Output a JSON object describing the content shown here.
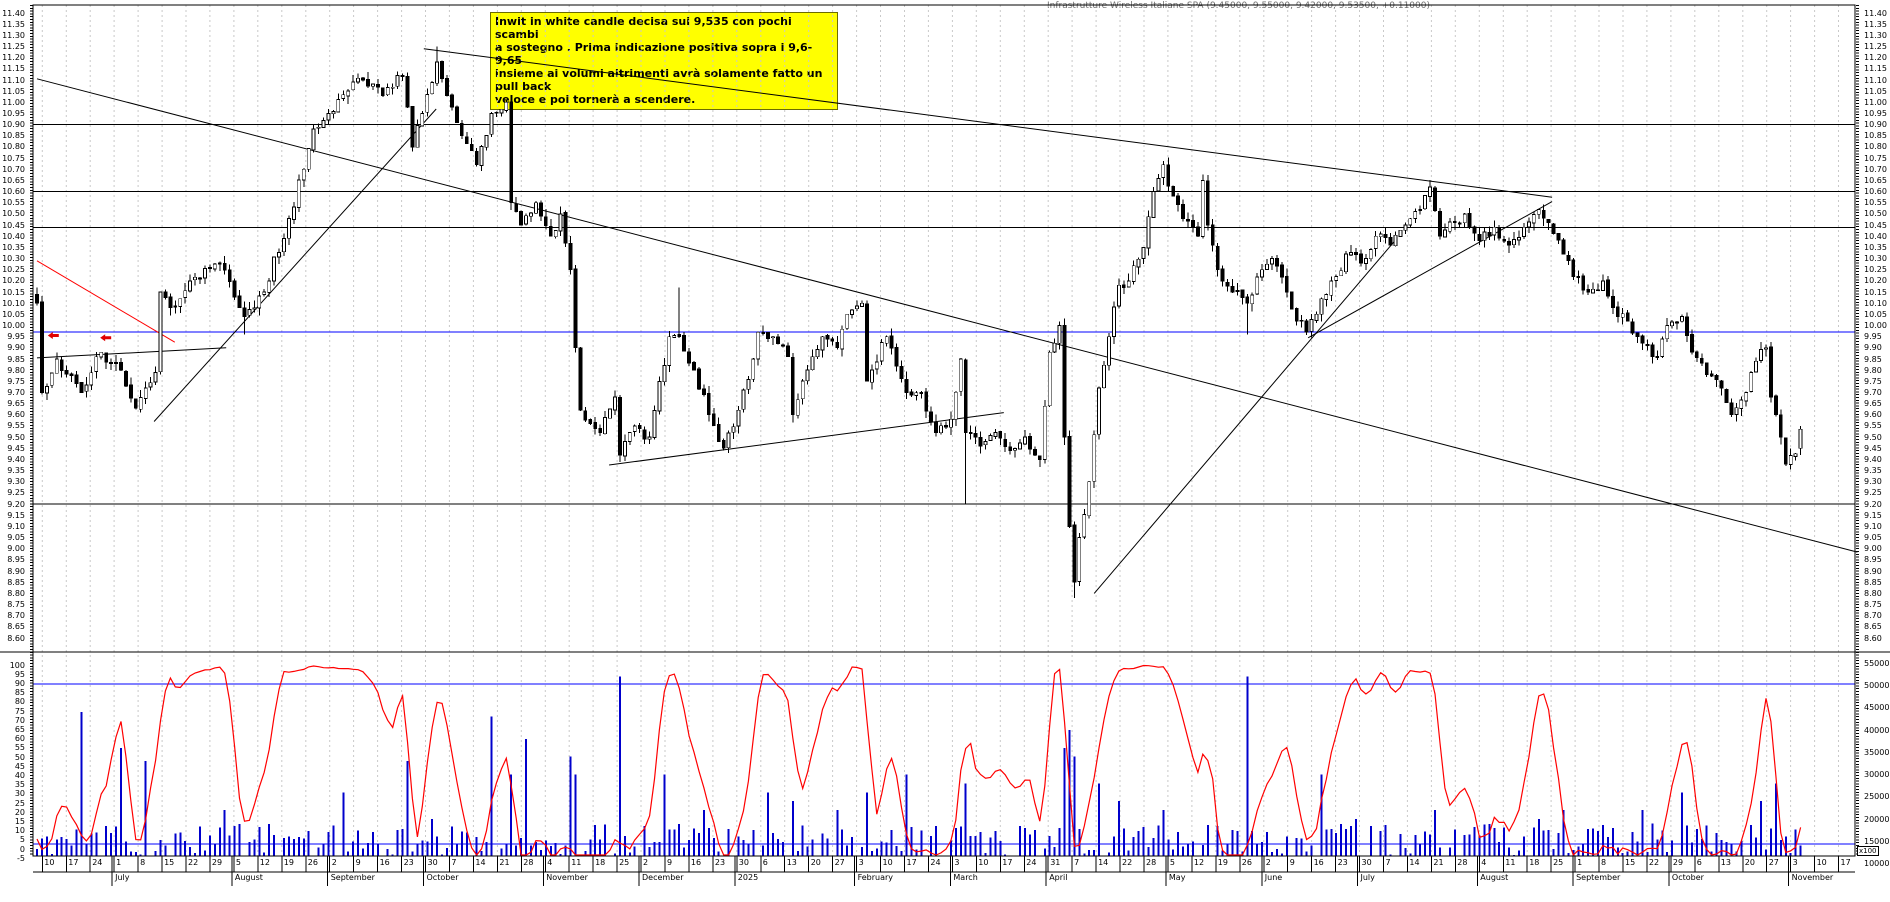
{
  "title": "Infrastrutture Wireless Italiane SPA (9.45000, 9.55000, 9.42000, 9.53500, +0.11000)",
  "note_box": {
    "lines": [
      "Inwit in white candle decisa sui 9,535 con pochi scambi",
      "a sostegno . Prima indicazione positiva sopra i 9,6-9,65",
      "insieme ai volumi altrimenti avrà solamente fatto un pull back",
      "veloce e poi tornerà a scendere."
    ],
    "bg_color": "#ffff00"
  },
  "chart_data": {
    "type": "candlestick",
    "instrument": "Infrastrutture Wireless Italiane SPA",
    "last_quote": {
      "open": 9.45,
      "high": 9.55,
      "low": 9.42,
      "close": 9.535,
      "change": "+0.11000"
    },
    "panels": [
      "price",
      "stochastic+volume"
    ],
    "price_axis": {
      "min": 8.6,
      "max": 11.4,
      "step": 0.05,
      "sides": [
        "left",
        "right"
      ]
    },
    "oscillator_axis": {
      "min": -5,
      "max": 100,
      "step": 5,
      "side": "left",
      "indicator": "stochastic",
      "bands": [
        90,
        10
      ],
      "line_color": "#ff0000",
      "band_color": "#0000ff"
    },
    "volume_axis": {
      "min": 10000,
      "max": 55000,
      "step": 5000,
      "side": "right",
      "unit_label": "x100",
      "bar_color": "#0000cc"
    },
    "horizontal_lines": [
      {
        "price": 10.9,
        "color": "#000000"
      },
      {
        "price": 10.6,
        "color": "#000000"
      },
      {
        "price": 10.44,
        "color": "#000000"
      },
      {
        "price": 9.97,
        "color": "#0000ff"
      },
      {
        "price": 9.2,
        "color": "#000000"
      }
    ],
    "trendlines": [
      {
        "name": "long-down-from-jun24",
        "i1": 0,
        "p1": 11.105,
        "i2": 368.5,
        "p2": 8.985,
        "color": "#000000"
      },
      {
        "name": "up-jul24-to-sep24-peak",
        "i1": 23.7,
        "p1": 9.57,
        "i2": 80.8,
        "p2": 10.97,
        "color": "#000000"
      },
      {
        "name": "down-from-oct24-peak",
        "i1": 78.3,
        "p1": 11.24,
        "i2": 306.7,
        "p2": 10.575,
        "color": "#000000"
      },
      {
        "name": "up-apr25-jun25-low",
        "i1": 214,
        "p1": 8.8,
        "i2": 274.7,
        "p2": 10.375,
        "color": "#000000"
      },
      {
        "name": "up-jun25-to-apex",
        "i1": 257.3,
        "p1": 9.945,
        "i2": 306.7,
        "p2": 10.555,
        "color": "#000000"
      },
      {
        "name": "flat-jun24-base",
        "i1": 0,
        "p1": 9.855,
        "i2": 38.3,
        "p2": 9.9,
        "color": "#000000"
      },
      {
        "name": "up-nov24-base",
        "i1": 115.8,
        "p1": 9.375,
        "i2": 195.7,
        "p2": 9.61,
        "color": "#000000"
      },
      {
        "name": "red-down-jun24",
        "i1": 0,
        "p1": 10.29,
        "i2": 27.9,
        "p2": 9.925,
        "color": "#ff0000"
      }
    ],
    "red_arrows": [
      {
        "i": 3.2,
        "p": 9.955
      },
      {
        "i": 13.8,
        "p": 9.945
      }
    ],
    "candles": 358,
    "price_anchors": [
      [
        0,
        10.1
      ],
      [
        1,
        9.7
      ],
      [
        4,
        9.85
      ],
      [
        9,
        9.7
      ],
      [
        13,
        9.88
      ],
      [
        17,
        9.8
      ],
      [
        20,
        9.63
      ],
      [
        24,
        9.79
      ],
      [
        25,
        10.15
      ],
      [
        27,
        10.08
      ],
      [
        31,
        10.2
      ],
      [
        37,
        10.28
      ],
      [
        42,
        10.04
      ],
      [
        46,
        10.15
      ],
      [
        51,
        10.48
      ],
      [
        54,
        10.7
      ],
      [
        56,
        10.88
      ],
      [
        59,
        10.95
      ],
      [
        63,
        11.05
      ],
      [
        66,
        11.1
      ],
      [
        70,
        11.03
      ],
      [
        74,
        11.12
      ],
      [
        76,
        10.8
      ],
      [
        78,
        10.95
      ],
      [
        81,
        11.18
      ],
      [
        83,
        11.03
      ],
      [
        86,
        10.85
      ],
      [
        89,
        10.72
      ],
      [
        92,
        10.95
      ],
      [
        95,
        11.0
      ],
      [
        96,
        10.55
      ],
      [
        98,
        10.45
      ],
      [
        101,
        10.55
      ],
      [
        104,
        10.4
      ],
      [
        106,
        10.5
      ],
      [
        108,
        10.25
      ],
      [
        109,
        9.9
      ],
      [
        110,
        9.62
      ],
      [
        114,
        9.52
      ],
      [
        117,
        9.68
      ],
      [
        118,
        9.42
      ],
      [
        121,
        9.55
      ],
      [
        124,
        9.5
      ],
      [
        128,
        9.95
      ],
      [
        130,
        9.95
      ],
      [
        133,
        9.8
      ],
      [
        136,
        9.6
      ],
      [
        139,
        9.45
      ],
      [
        142,
        9.62
      ],
      [
        145,
        9.85
      ],
      [
        146,
        9.97
      ],
      [
        149,
        9.95
      ],
      [
        152,
        9.86
      ],
      [
        153,
        9.6
      ],
      [
        157,
        9.86
      ],
      [
        159,
        9.95
      ],
      [
        162,
        9.9
      ],
      [
        164,
        10.05
      ],
      [
        167,
        10.1
      ],
      [
        168,
        9.75
      ],
      [
        169,
        9.8
      ],
      [
        172,
        9.95
      ],
      [
        176,
        9.7
      ],
      [
        179,
        9.7
      ],
      [
        182,
        9.52
      ],
      [
        185,
        9.58
      ],
      [
        187,
        9.85
      ],
      [
        188,
        9.52
      ],
      [
        191,
        9.46
      ],
      [
        194,
        9.52
      ],
      [
        197,
        9.44
      ],
      [
        200,
        9.5
      ],
      [
        203,
        9.4
      ],
      [
        205,
        9.88
      ],
      [
        207,
        10.0
      ],
      [
        208,
        9.5
      ],
      [
        209,
        9.1
      ],
      [
        210,
        8.85
      ],
      [
        211,
        9.05
      ],
      [
        213,
        9.3
      ],
      [
        215,
        9.72
      ],
      [
        217,
        9.95
      ],
      [
        219,
        10.18
      ],
      [
        221,
        10.2
      ],
      [
        224,
        10.35
      ],
      [
        226,
        10.6
      ],
      [
        228,
        10.72
      ],
      [
        230,
        10.58
      ],
      [
        232,
        10.48
      ],
      [
        235,
        10.4
      ],
      [
        236,
        10.65
      ],
      [
        237,
        10.45
      ],
      [
        239,
        10.25
      ],
      [
        242,
        10.15
      ],
      [
        245,
        10.1
      ],
      [
        248,
        10.25
      ],
      [
        250,
        10.3
      ],
      [
        253,
        10.15
      ],
      [
        255,
        10.02
      ],
      [
        257,
        9.97
      ],
      [
        260,
        10.12
      ],
      [
        263,
        10.22
      ],
      [
        265,
        10.32
      ],
      [
        268,
        10.28
      ],
      [
        271,
        10.4
      ],
      [
        274,
        10.36
      ],
      [
        277,
        10.45
      ],
      [
        280,
        10.52
      ],
      [
        282,
        10.62
      ],
      [
        284,
        10.4
      ],
      [
        287,
        10.46
      ],
      [
        289,
        10.5
      ],
      [
        292,
        10.38
      ],
      [
        295,
        10.44
      ],
      [
        298,
        10.36
      ],
      [
        301,
        10.44
      ],
      [
        304,
        10.52
      ],
      [
        306,
        10.46
      ],
      [
        309,
        10.32
      ],
      [
        311,
        10.22
      ],
      [
        314,
        10.15
      ],
      [
        317,
        10.2
      ],
      [
        319,
        10.08
      ],
      [
        322,
        10.02
      ],
      [
        325,
        9.92
      ],
      [
        328,
        9.86
      ],
      [
        330,
        10.0
      ],
      [
        333,
        10.04
      ],
      [
        335,
        9.88
      ],
      [
        338,
        9.78
      ],
      [
        341,
        9.72
      ],
      [
        343,
        9.6
      ],
      [
        346,
        9.7
      ],
      [
        348,
        9.84
      ],
      [
        350,
        9.9
      ],
      [
        351,
        9.68
      ],
      [
        353,
        9.5
      ],
      [
        354,
        9.38
      ],
      [
        356,
        9.425
      ],
      [
        357,
        9.535
      ]
    ],
    "ohlc_overrides": {
      "42": {
        "low": 9.96
      },
      "81": {
        "high": 11.25
      },
      "130": {
        "high": 10.17
      },
      "188": {
        "low": 9.2
      },
      "210": {
        "low": 8.78
      },
      "245": {
        "low": 9.96
      },
      "357": {
        "open": 9.45,
        "high": 9.55,
        "low": 9.42,
        "close": 9.535
      }
    },
    "volume_spikes": {
      "9": 44000,
      "17": 36000,
      "22": 33000,
      "38": 22000,
      "62": 26000,
      "75": 33000,
      "80": 20000,
      "92": 43000,
      "96": 30000,
      "99": 38000,
      "108": 34000,
      "109": 30000,
      "118": 52000,
      "127": 30000,
      "135": 22000,
      "148": 26000,
      "153": 24000,
      "162": 22000,
      "168": 26000,
      "176": 30000,
      "188": 28000,
      "200": 18000,
      "208": 36000,
      "209": 40000,
      "210": 34000,
      "215": 28000,
      "219": 24000,
      "228": 22000,
      "245": 52000,
      "260": 30000,
      "267": 20000,
      "283": 22000,
      "295": 18000,
      "304": 20000,
      "309": 22000,
      "319": 18000,
      "325": 22000,
      "333": 26000,
      "349": 24000,
      "352": 28000,
      "357": 14000
    },
    "date_axis": {
      "weeks": [
        "10",
        "17",
        "24",
        "1",
        "8",
        "15",
        "22",
        "29",
        "5",
        "12",
        "19",
        "26",
        "2",
        "9",
        "16",
        "23",
        "30",
        "7",
        "14",
        "21",
        "28",
        "4",
        "11",
        "18",
        "25",
        "2",
        "9",
        "16",
        "23",
        "30",
        "6",
        "13",
        "20",
        "27",
        "3",
        "10",
        "17",
        "24",
        "3",
        "10",
        "17",
        "24",
        "31",
        "7",
        "14",
        "22",
        "28",
        "5",
        "12",
        "19",
        "26",
        "2",
        "9",
        "16",
        "23",
        "30",
        "7",
        "14",
        "21",
        "28",
        "4",
        "11",
        "18",
        "25",
        "1",
        "8",
        "15",
        "22",
        "29",
        "6",
        "13",
        "20",
        "27",
        "3",
        "10",
        "17"
      ],
      "months": [
        {
          "label": "July",
          "week": 3
        },
        {
          "label": "August",
          "week": 8
        },
        {
          "label": "September",
          "week": 12
        },
        {
          "label": "October",
          "week": 16
        },
        {
          "label": "November",
          "week": 21
        },
        {
          "label": "December",
          "week": 25
        },
        {
          "label": "2025",
          "week": 29
        },
        {
          "label": "February",
          "week": 34
        },
        {
          "label": "March",
          "week": 38
        },
        {
          "label": "April",
          "week": 42
        },
        {
          "label": "May",
          "week": 47
        },
        {
          "label": "June",
          "week": 51
        },
        {
          "label": "July",
          "week": 55
        },
        {
          "label": "August",
          "week": 60
        },
        {
          "label": "September",
          "week": 64
        },
        {
          "label": "October",
          "week": 68
        },
        {
          "label": "November",
          "week": 73
        }
      ]
    }
  }
}
